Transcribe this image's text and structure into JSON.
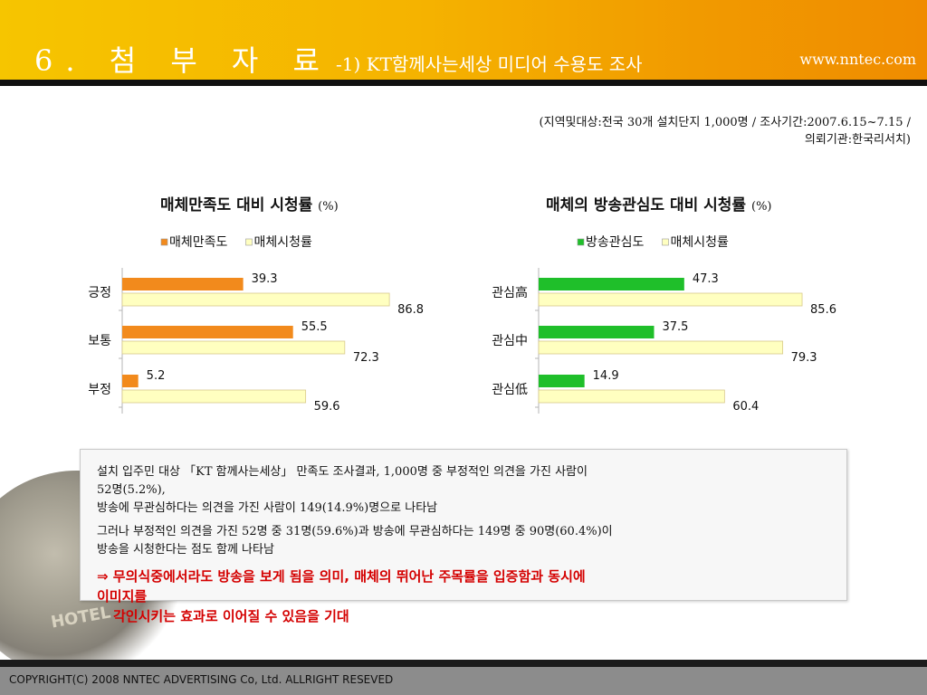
{
  "header": {
    "title_main": "6. 첨 부 자 료",
    "title_sub": "-1) KT함께사는세상 미디어 수용도 조사",
    "site": "www.nntec.com"
  },
  "meta": {
    "line1": "(지역및대상:전국 30개 설치단지 1,000명 / 조사기간:2007.6.15~7.15 /",
    "line2": "의뢰기관:한국리서치)"
  },
  "colors": {
    "orange": "#f28a1c",
    "yellow": "#ffffc0",
    "green": "#1fbf2a",
    "header": "#f5b300",
    "red_text": "#d40000"
  },
  "chart_data": [
    {
      "type": "bar",
      "title": "매체만족도  대비  시청률",
      "unit": "(%)",
      "categories": [
        "긍정",
        "보통",
        "부정"
      ],
      "series": [
        {
          "name": "매체만족도",
          "values": [
            39.3,
            55.5,
            5.2
          ],
          "color": "#f28a1c"
        },
        {
          "name": "매체시청률",
          "values": [
            86.8,
            72.3,
            59.6
          ],
          "color": "#ffffc0"
        }
      ],
      "orientation": "horizontal",
      "xlim": [
        0,
        100
      ],
      "legend": "top"
    },
    {
      "type": "bar",
      "title": "매체의  방송관심도  대비  시청률",
      "unit": "(%)",
      "categories": [
        "관심高",
        "관심中",
        "관심低"
      ],
      "series": [
        {
          "name": "방송관심도",
          "values": [
            47.3,
            37.5,
            14.9
          ],
          "color": "#1fbf2a"
        },
        {
          "name": "매체시청률",
          "values": [
            85.6,
            79.3,
            60.4
          ],
          "color": "#ffffc0"
        }
      ],
      "orientation": "horizontal",
      "xlim": [
        0,
        100
      ],
      "legend": "top"
    }
  ],
  "body": {
    "p1a": "설치 입주민 대상 「KT 함께사는세상」 만족도 조사결과, 1,000명 중 부정적인 의견을 가진 사람이",
    "p1b": "52명(5.2%),",
    "p1c": "방송에 무관심하다는 의견을 가진 사람이 149(14.9%)명으로 나타남",
    "p2a": "그러나 부정적인 의견을 가진 52명 중 31명(59.6%)과 방송에 무관심하다는 149명 중 90명(60.4%)이",
    "p2b": "방송을 시청한다는 점도 함께 나타남",
    "p3a": "⇒ 무의식중에서라도 방송을 보게 됨을 의미, 매체의 뛰어난 주목률을 입증함과 동시에",
    "p3b": "이미지를",
    "p3c": "각인시키는 효과로 이어질 수 있음을 기대"
  },
  "footer": "COPYRIGHT(C) 2008 NNTEC ADVERTISING Co, Ltd. ALLRIGHT RESEVED"
}
